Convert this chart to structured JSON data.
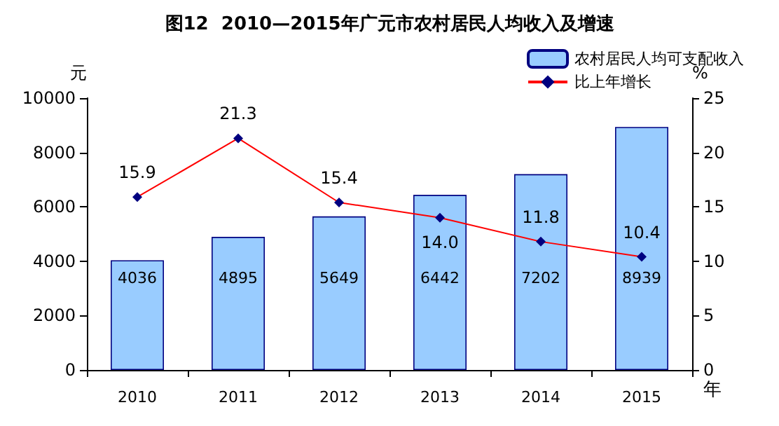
{
  "chart_data": {
    "type": "bar",
    "title": "图12  2010—2015年广元市农村居民人均收入及增速",
    "categories": [
      "2010",
      "2011",
      "2012",
      "2013",
      "2014",
      "2015"
    ],
    "series": [
      {
        "name": "农村居民人均可支配收入",
        "color": "#99ccff",
        "values": [
          4036,
          4895,
          5649,
          6442,
          7202,
          8939
        ]
      },
      {
        "name": "比上年增长",
        "type": "line",
        "axis": "y2",
        "color": "#ff0000",
        "marker": "diamond",
        "values": [
          15.9,
          21.3,
          15.4,
          14.0,
          11.8,
          10.4
        ],
        "value_labels": [
          "15.9",
          "21.3",
          "15.4",
          "14.0",
          "11.8",
          "10.4"
        ]
      }
    ],
    "ylabel": "元",
    "y2label": "%",
    "xlabel": "年",
    "ylim": [
      0,
      10000
    ],
    "yticks": [
      0,
      2000,
      4000,
      6000,
      8000,
      10000
    ],
    "y2lim": [
      0,
      25
    ],
    "y2ticks": [
      0,
      5,
      10,
      15,
      20,
      25
    ],
    "data_labels": true,
    "legend": "top right",
    "grid": false
  }
}
